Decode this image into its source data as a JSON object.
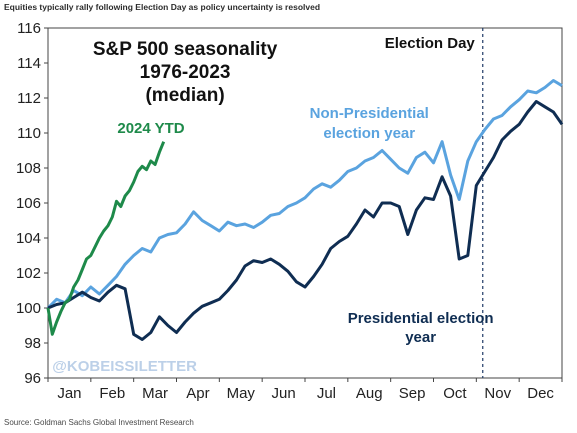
{
  "header": {
    "note": "Equities typically rally following Election Day as policy uncertainty is resolved"
  },
  "footer": {
    "source": "Source: Goldman Sachs Global Investment Research"
  },
  "chart_data": {
    "type": "line",
    "title": "S&P 500 seasonality",
    "subtitle_lines": [
      "1976-2023",
      "(median)"
    ],
    "xlabel": "",
    "ylabel": "",
    "ylim": [
      96,
      116
    ],
    "xlim": [
      0,
      12
    ],
    "y_ticks": [
      96,
      98,
      100,
      102,
      104,
      106,
      108,
      110,
      112,
      114,
      116
    ],
    "x_tick_labels": [
      "Jan",
      "Feb",
      "Mar",
      "Apr",
      "May",
      "Jun",
      "Jul",
      "Aug",
      "Sep",
      "Oct",
      "Nov",
      "Dec"
    ],
    "grid": false,
    "legend": "none",
    "watermark": "@KOBEISSILETTER",
    "annotations": {
      "election_day_label": "Election Day",
      "election_day_x": 10.15,
      "nonpres_label_lines": [
        "Non-Presidential",
        "election year"
      ],
      "pres_label_lines": [
        "Presidential election",
        "year"
      ],
      "ytd_label": "2024 YTD"
    },
    "series": [
      {
        "label_id": "nonpres",
        "color": "#5aa3df",
        "x": [
          0,
          0.2,
          0.4,
          0.6,
          0.8,
          1.0,
          1.2,
          1.4,
          1.6,
          1.8,
          2.0,
          2.2,
          2.4,
          2.6,
          2.8,
          3.0,
          3.2,
          3.4,
          3.6,
          3.8,
          4.0,
          4.2,
          4.4,
          4.6,
          4.8,
          5.0,
          5.2,
          5.4,
          5.6,
          5.8,
          6.0,
          6.2,
          6.4,
          6.6,
          6.8,
          7.0,
          7.2,
          7.4,
          7.6,
          7.8,
          8.0,
          8.2,
          8.4,
          8.6,
          8.8,
          9.0,
          9.2,
          9.4,
          9.6,
          9.8,
          10.0,
          10.2,
          10.4,
          10.6,
          10.8,
          11.0,
          11.2,
          11.4,
          11.6,
          11.8,
          12.0
        ],
        "y": [
          100.0,
          100.5,
          100.3,
          101.0,
          100.7,
          101.2,
          100.8,
          101.3,
          101.8,
          102.5,
          103.0,
          103.4,
          103.2,
          104.0,
          104.2,
          104.3,
          104.8,
          105.5,
          105.0,
          104.7,
          104.4,
          104.9,
          104.7,
          104.8,
          104.6,
          104.9,
          105.3,
          105.4,
          105.8,
          106.0,
          106.3,
          106.8,
          107.1,
          106.9,
          107.3,
          107.8,
          108.0,
          108.4,
          108.6,
          109.0,
          108.5,
          108.0,
          107.7,
          108.6,
          108.9,
          108.3,
          109.5,
          107.6,
          106.2,
          108.4,
          109.5,
          110.2,
          110.8,
          111.0,
          111.5,
          111.9,
          112.4,
          112.3,
          112.6,
          113.0,
          112.7
        ]
      },
      {
        "label_id": "pres",
        "color": "#0f2d52",
        "x": [
          0,
          0.2,
          0.4,
          0.6,
          0.8,
          1.0,
          1.2,
          1.4,
          1.6,
          1.8,
          2.0,
          2.2,
          2.4,
          2.6,
          2.8,
          3.0,
          3.2,
          3.4,
          3.6,
          3.8,
          4.0,
          4.2,
          4.4,
          4.6,
          4.8,
          5.0,
          5.2,
          5.4,
          5.6,
          5.8,
          6.0,
          6.2,
          6.4,
          6.6,
          6.8,
          7.0,
          7.2,
          7.4,
          7.6,
          7.8,
          8.0,
          8.2,
          8.4,
          8.6,
          8.8,
          9.0,
          9.2,
          9.4,
          9.6,
          9.8,
          10.0,
          10.2,
          10.4,
          10.6,
          10.8,
          11.0,
          11.2,
          11.4,
          11.6,
          11.8,
          12.0
        ],
        "y": [
          100.0,
          100.2,
          100.3,
          100.6,
          100.9,
          100.6,
          100.4,
          100.9,
          101.3,
          101.1,
          98.5,
          98.2,
          98.6,
          99.5,
          99.0,
          98.6,
          99.2,
          99.7,
          100.1,
          100.3,
          100.5,
          101.0,
          101.6,
          102.4,
          102.7,
          102.6,
          102.8,
          102.5,
          102.1,
          101.5,
          101.2,
          101.8,
          102.5,
          103.4,
          103.8,
          104.1,
          104.8,
          105.6,
          105.2,
          106.0,
          106.0,
          105.8,
          104.2,
          105.6,
          106.3,
          106.2,
          107.5,
          106.4,
          102.8,
          103.0,
          107.0,
          107.8,
          108.6,
          109.6,
          110.1,
          110.5,
          111.2,
          111.8,
          111.5,
          111.2,
          110.5
        ]
      },
      {
        "label_id": "ytd",
        "color": "#1e8a4a",
        "x": [
          0,
          0.1,
          0.2,
          0.3,
          0.4,
          0.5,
          0.6,
          0.7,
          0.8,
          0.9,
          1.0,
          1.1,
          1.2,
          1.3,
          1.4,
          1.5,
          1.6,
          1.7,
          1.8,
          1.9,
          2.0,
          2.1,
          2.2,
          2.3,
          2.4,
          2.5,
          2.6,
          2.7
        ],
        "y": [
          100.0,
          98.5,
          99.2,
          99.8,
          100.3,
          100.5,
          101.2,
          101.6,
          102.2,
          102.8,
          103.0,
          103.5,
          104.0,
          104.4,
          104.7,
          105.2,
          106.1,
          105.8,
          106.4,
          106.7,
          107.2,
          107.8,
          108.1,
          107.9,
          108.4,
          108.2,
          108.9,
          109.5
        ]
      }
    ]
  }
}
